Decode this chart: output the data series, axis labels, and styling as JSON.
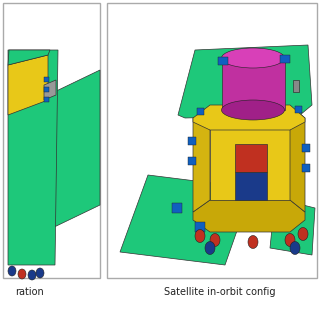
{
  "fig_width": 3.2,
  "fig_height": 3.2,
  "dpi": 100,
  "bg_color": "#ffffff",
  "border_color": "#aaaaaa",
  "panel_bg": "#ffffff",
  "label_left": "ration",
  "label_right": "Satellite in-orbit config",
  "label_fontsize": 7.0,
  "label_color": "#222222",
  "green": "#1ec87a",
  "green2": "#2ed880",
  "yellow": "#e8c818",
  "yellow_dark": "#c8a808",
  "yellow_side": "#d4b410",
  "magenta": "#c030a0",
  "magenta_light": "#d840b8",
  "magenta_dark": "#a02088",
  "blue_dark": "#1a3a8a",
  "red_dark": "#c03020",
  "blue_small": "#1060c0",
  "gray": "#888888",
  "white": "#ffffff"
}
